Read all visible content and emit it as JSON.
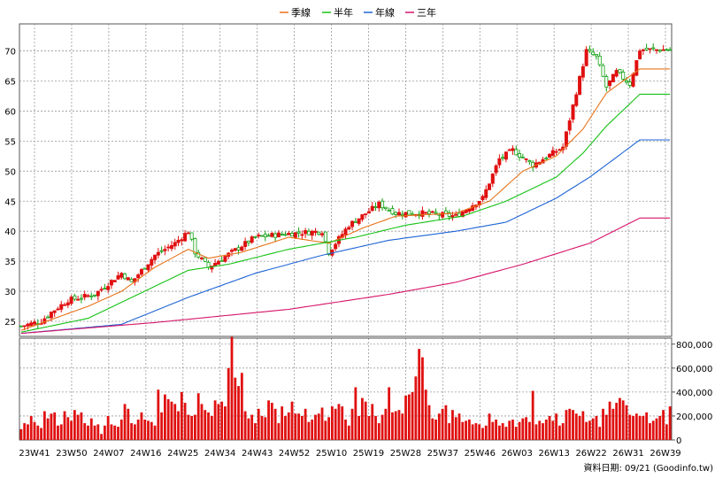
{
  "legend": [
    {
      "label": "季線",
      "color": "#e8731a"
    },
    {
      "label": "半年",
      "color": "#16c216"
    },
    {
      "label": "年線",
      "color": "#1e64d6"
    },
    {
      "label": "三年",
      "color": "#d6156a"
    }
  ],
  "footer": "資料日期: 09/21 (Goodinfo.tw)",
  "colors": {
    "up": "#e01010",
    "down": "#10a010",
    "volume": "#e01010",
    "grid": "#9a9a9a"
  },
  "chart_data": [
    {
      "type": "candlestick",
      "y_ticks": [
        "25",
        "30",
        "35",
        "40",
        "45",
        "50",
        "55",
        "60",
        "65",
        "70"
      ],
      "ylim": [
        22.5,
        74.5
      ],
      "x_ticks": [
        "23W41",
        "23W50",
        "24W07",
        "24W16",
        "24W25",
        "24W34",
        "24W43",
        "24W52",
        "25W10",
        "25W19",
        "25W28",
        "25W37",
        "25W46",
        "26W03",
        "26W13",
        "26W22",
        "26W31",
        "26W39"
      ],
      "grid": true,
      "series_names": [
        "季線",
        "半年",
        "年線",
        "三年"
      ],
      "close_keypoints": [
        [
          0,
          24.2
        ],
        [
          6,
          25
        ],
        [
          9,
          26.5
        ],
        [
          14,
          28.5
        ],
        [
          22,
          29.5
        ],
        [
          30,
          33
        ],
        [
          33,
          31.5
        ],
        [
          40,
          36
        ],
        [
          46,
          38
        ],
        [
          50,
          40
        ],
        [
          52,
          36.5
        ],
        [
          56,
          34
        ],
        [
          63,
          36.5
        ],
        [
          70,
          39
        ],
        [
          78,
          39.5
        ],
        [
          90,
          40
        ],
        [
          92,
          36.5
        ],
        [
          98,
          41
        ],
        [
          107,
          44.5
        ],
        [
          112,
          43
        ],
        [
          120,
          43
        ],
        [
          130,
          42.5
        ],
        [
          138,
          45.5
        ],
        [
          143,
          52
        ],
        [
          147,
          53.5
        ],
        [
          153,
          51
        ],
        [
          162,
          54
        ],
        [
          169,
          70
        ],
        [
          172,
          69
        ],
        [
          175,
          64
        ],
        [
          178,
          66.5
        ],
        [
          182,
          64.5
        ],
        [
          185,
          70.2
        ]
      ],
      "ma_keypoints": {
        "季線": [
          [
            0,
            23.5
          ],
          [
            20,
            27.5
          ],
          [
            30,
            30
          ],
          [
            40,
            34
          ],
          [
            50,
            37
          ],
          [
            56,
            35.5
          ],
          [
            66,
            36.5
          ],
          [
            80,
            39
          ],
          [
            92,
            38
          ],
          [
            102,
            40.5
          ],
          [
            112,
            42.5
          ],
          [
            130,
            43
          ],
          [
            140,
            45
          ],
          [
            150,
            50
          ],
          [
            160,
            52.5
          ],
          [
            168,
            57
          ],
          [
            175,
            63
          ],
          [
            185,
            67
          ]
        ],
        "半年": [
          [
            0,
            23.2
          ],
          [
            20,
            25.5
          ],
          [
            35,
            29.5
          ],
          [
            50,
            33.5
          ],
          [
            62,
            34.5
          ],
          [
            80,
            37
          ],
          [
            100,
            39
          ],
          [
            115,
            41
          ],
          [
            132,
            42.5
          ],
          [
            145,
            45
          ],
          [
            160,
            49
          ],
          [
            168,
            53
          ],
          [
            175,
            57.5
          ],
          [
            185,
            62.8
          ]
        ],
        "年線": [
          [
            0,
            23
          ],
          [
            30,
            24.5
          ],
          [
            50,
            29
          ],
          [
            70,
            33
          ],
          [
            90,
            36
          ],
          [
            110,
            38.5
          ],
          [
            130,
            40
          ],
          [
            145,
            41.5
          ],
          [
            160,
            45.5
          ],
          [
            170,
            49
          ],
          [
            185,
            55.2
          ]
        ],
        "三年": [
          [
            0,
            23
          ],
          [
            40,
            24.8
          ],
          [
            80,
            27
          ],
          [
            110,
            29.5
          ],
          [
            130,
            31.5
          ],
          [
            150,
            34.5
          ],
          [
            170,
            38
          ],
          [
            185,
            42.2
          ]
        ]
      },
      "volume": {
        "y_ticks": [
          "0",
          "200,000",
          "400,000",
          "600,000",
          "800,000"
        ],
        "ylim": [
          0,
          850000
        ],
        "bars_in_thousands": [
          90,
          140,
          130,
          200,
          150,
          120,
          100,
          240,
          180,
          220,
          230,
          120,
          130,
          240,
          190,
          160,
          250,
          210,
          230,
          140,
          120,
          180,
          120,
          130,
          50,
          120,
          200,
          130,
          120,
          110,
          170,
          300,
          260,
          140,
          130,
          170,
          230,
          170,
          160,
          150,
          120,
          420,
          230,
          380,
          340,
          320,
          300,
          240,
          400,
          310,
          210,
          200,
          210,
          390,
          300,
          250,
          230,
          200,
          330,
          300,
          320,
          280,
          600,
          860,
          520,
          450,
          560,
          240,
          180,
          210,
          140,
          260,
          200,
          190,
          330,
          310,
          260,
          140,
          280,
          200,
          230,
          320,
          220,
          220,
          200,
          260,
          150,
          170,
          210,
          220,
          270,
          160,
          190,
          280,
          260,
          300,
          280,
          170,
          120,
          260,
          440,
          200,
          350,
          320,
          200,
          300,
          200,
          140,
          210,
          260,
          440,
          230,
          240,
          250,
          220,
          370,
          380,
          400,
          530,
          760,
          690,
          420,
          290,
          180,
          170,
          220,
          260,
          290,
          140,
          250,
          190,
          220,
          150,
          160,
          170,
          130,
          140,
          130,
          100,
          120,
          220,
          150,
          170,
          120,
          140,
          110,
          160,
          170,
          110,
          150,
          180,
          190,
          150,
          410,
          130,
          160,
          140,
          170,
          200,
          160,
          220,
          120,
          140,
          250,
          260,
          250,
          220,
          200,
          240,
          150,
          160,
          180,
          200,
          110,
          260,
          210,
          320,
          260,
          310,
          350,
          330,
          290,
          210,
          200,
          220,
          200,
          200,
          230,
          140,
          160,
          180,
          200,
          250,
          130,
          280
        ]
      }
    }
  ]
}
